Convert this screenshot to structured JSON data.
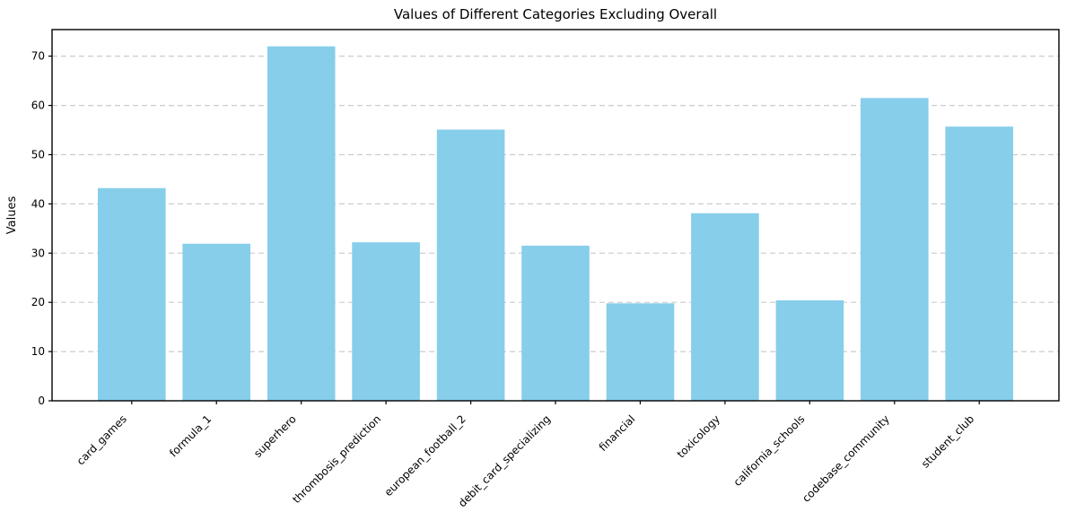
{
  "figure": {
    "background_color": "#ffffff",
    "text_color": "#000000"
  },
  "chart_data": {
    "type": "bar",
    "title": "Values of Different Categories Excluding Overall",
    "xlabel": "",
    "ylabel": "Values",
    "categories": [
      "card_games",
      "formula_1",
      "superhero",
      "thrombosis_prediction",
      "european_football_2",
      "debit_card_specializing",
      "financial",
      "toxicology",
      "california_schools",
      "codebase_community",
      "student_club"
    ],
    "values": [
      43.2,
      31.9,
      72.0,
      32.2,
      55.1,
      31.5,
      19.8,
      38.1,
      20.4,
      61.5,
      55.7
    ],
    "ylim": [
      0,
      75.4
    ],
    "yticks": [
      0,
      10,
      20,
      30,
      40,
      50,
      60,
      70
    ],
    "x_tick_rotation": 45,
    "bar_color": "#87CEEB",
    "grid": {
      "axis": "y",
      "linestyle": "dashed",
      "color": "#cccccc",
      "visible": true
    },
    "legend": {
      "visible": false
    }
  }
}
